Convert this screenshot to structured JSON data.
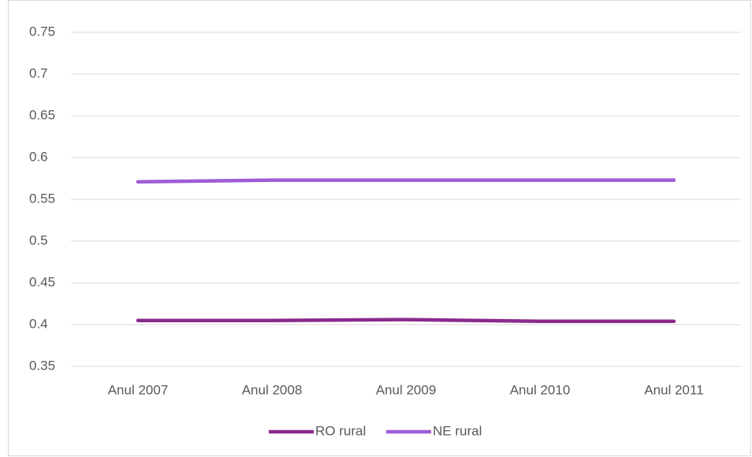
{
  "chart_data": {
    "type": "line",
    "categories": [
      "Anul 2007",
      "Anul 2008",
      "Anul 2009",
      "Anul 2010",
      "Anul 2011"
    ],
    "series": [
      {
        "name": "RO rural",
        "color": "#8b2a8c",
        "values": [
          0.405,
          0.405,
          0.406,
          0.404,
          0.404
        ]
      },
      {
        "name": "NE rural",
        "color": "#a05cd6",
        "values": [
          0.571,
          0.573,
          0.573,
          0.573,
          0.573
        ]
      }
    ],
    "ylim": [
      0.35,
      0.75
    ],
    "yticks": [
      0.35,
      0.4,
      0.45,
      0.5,
      0.55,
      0.6,
      0.65,
      0.7,
      0.75
    ],
    "grid": true,
    "legend": "bottom"
  }
}
